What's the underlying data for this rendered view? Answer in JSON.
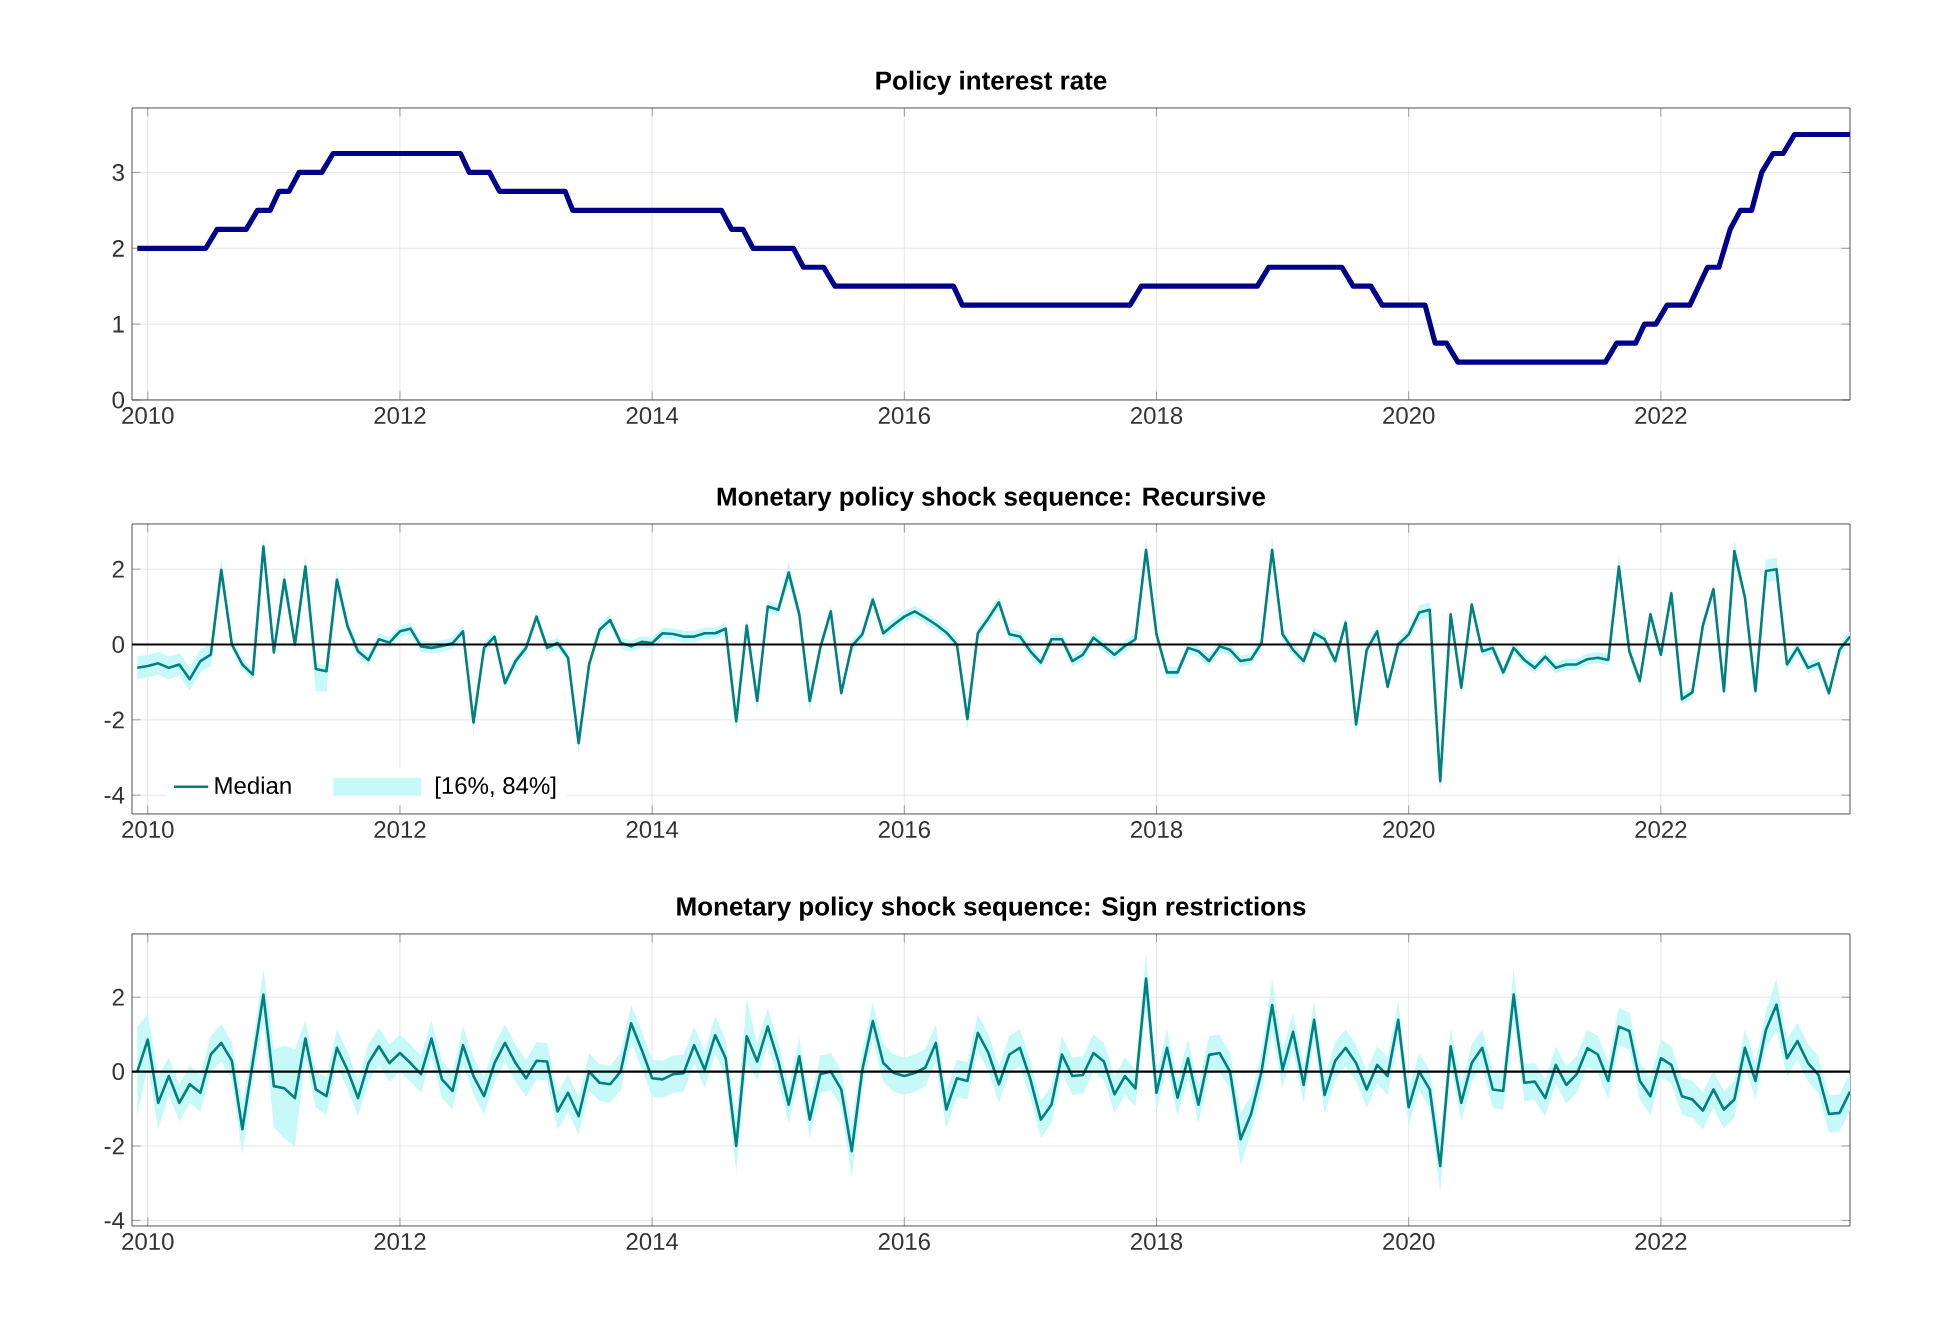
{
  "chart_data": [
    {
      "type": "line",
      "title": "Policy interest rate",
      "color": "#00008b",
      "x": [
        2009.917,
        2010.46,
        2010.55,
        2010.78,
        2010.87,
        2010.97,
        2011.04,
        2011.12,
        2011.2,
        2011.38,
        2011.47,
        2012.48,
        2012.55,
        2012.71,
        2012.79,
        2013.31,
        2013.37,
        2014.55,
        2014.63,
        2014.72,
        2014.8,
        2015.12,
        2015.2,
        2015.36,
        2015.45,
        2016.39,
        2016.46,
        2017.79,
        2017.88,
        2018.8,
        2018.89,
        2019.47,
        2019.56,
        2019.7,
        2019.79,
        2020.13,
        2020.21,
        2020.3,
        2020.39,
        2021.56,
        2021.65,
        2021.8,
        2021.87,
        2021.96,
        2022.05,
        2022.23,
        2022.37,
        2022.46,
        2022.55,
        2022.63,
        2022.72,
        2022.8,
        2022.89,
        2022.97,
        2023.06,
        2023.5
      ],
      "values": [
        2,
        2,
        2.25,
        2.25,
        2.5,
        2.5,
        2.75,
        2.75,
        3,
        3,
        3.25,
        3.25,
        3,
        3,
        2.75,
        2.75,
        2.5,
        2.5,
        2.25,
        2.25,
        2,
        2,
        1.75,
        1.75,
        1.5,
        1.5,
        1.25,
        1.25,
        1.5,
        1.5,
        1.75,
        1.75,
        1.5,
        1.5,
        1.25,
        1.25,
        0.75,
        0.75,
        0.5,
        0.5,
        0.75,
        0.75,
        1,
        1,
        1.25,
        1.25,
        1.75,
        1.75,
        2.25,
        2.5,
        2.5,
        3,
        3.25,
        3.25,
        3.5,
        3.5
      ],
      "xlim": [
        2009.875,
        2023.5
      ],
      "ylim": [
        0,
        3.85
      ],
      "xticks": [
        2010,
        2012,
        2014,
        2016,
        2018,
        2020,
        2022
      ],
      "yticks": [
        0,
        1,
        2,
        3
      ],
      "grid": true
    },
    {
      "type": "line",
      "title": "Monetary policy shock sequence: Recursive",
      "legend": "bottom left",
      "annotations": [
        "[16%, 84%]"
      ],
      "x": [
        2009.917,
        2010,
        2010.083,
        2010.167,
        2010.25,
        2010.333,
        2010.417,
        2010.5,
        2010.583,
        2010.667,
        2010.75,
        2010.833,
        2010.917,
        2011,
        2011.083,
        2011.167,
        2011.25,
        2011.333,
        2011.417,
        2011.5,
        2011.583,
        2011.667,
        2011.75,
        2011.833,
        2011.917,
        2012,
        2012.083,
        2012.167,
        2012.25,
        2012.333,
        2012.417,
        2012.5,
        2012.583,
        2012.667,
        2012.75,
        2012.833,
        2012.917,
        2013,
        2013.083,
        2013.167,
        2013.25,
        2013.333,
        2013.417,
        2013.5,
        2013.583,
        2013.667,
        2013.75,
        2013.833,
        2013.917,
        2014,
        2014.083,
        2014.167,
        2014.25,
        2014.333,
        2014.417,
        2014.5,
        2014.583,
        2014.667,
        2014.75,
        2014.833,
        2014.917,
        2015,
        2015.083,
        2015.167,
        2015.25,
        2015.333,
        2015.417,
        2015.5,
        2015.583,
        2015.667,
        2015.75,
        2015.833,
        2015.917,
        2016,
        2016.083,
        2016.167,
        2016.25,
        2016.333,
        2016.417,
        2016.5,
        2016.583,
        2016.667,
        2016.75,
        2016.833,
        2016.917,
        2017,
        2017.083,
        2017.167,
        2017.25,
        2017.333,
        2017.417,
        2017.5,
        2017.583,
        2017.667,
        2017.75,
        2017.833,
        2017.917,
        2018,
        2018.083,
        2018.167,
        2018.25,
        2018.333,
        2018.417,
        2018.5,
        2018.583,
        2018.667,
        2018.75,
        2018.833,
        2018.917,
        2019,
        2019.083,
        2019.167,
        2019.25,
        2019.333,
        2019.417,
        2019.5,
        2019.583,
        2019.667,
        2019.75,
        2019.833,
        2019.917,
        2020,
        2020.083,
        2020.167,
        2020.25,
        2020.333,
        2020.417,
        2020.5,
        2020.583,
        2020.667,
        2020.75,
        2020.833,
        2020.917,
        2021,
        2021.083,
        2021.167,
        2021.25,
        2021.333,
        2021.417,
        2021.5,
        2021.583,
        2021.667,
        2021.75,
        2021.833,
        2021.917,
        2022,
        2022.083,
        2022.167,
        2022.25,
        2022.333,
        2022.417,
        2022.5,
        2022.583,
        2022.667,
        2022.75,
        2022.833,
        2022.917,
        2023,
        2023.083,
        2023.167,
        2023.25,
        2023.333,
        2023.417,
        2023.5
      ],
      "series": [
        {
          "name": "Median",
          "color": "#008080",
          "values": [
            -0.62,
            -0.57,
            -0.5,
            -0.62,
            -0.53,
            -0.92,
            -0.44,
            -0.27,
            1.98,
            0,
            -0.53,
            -0.8,
            2.6,
            -0.21,
            1.72,
            0,
            2.07,
            -0.65,
            -0.71,
            1.72,
            0.5,
            -0.18,
            -0.41,
            0.14,
            0.05,
            0.35,
            0.42,
            -0.05,
            -0.09,
            -0.04,
            0.03,
            0.35,
            -2.07,
            -0.09,
            0.21,
            -1.03,
            -0.44,
            -0.09,
            0.74,
            -0.09,
            0.04,
            -0.35,
            -2.62,
            -0.53,
            0.39,
            0.65,
            0.05,
            -0.05,
            0.07,
            0.04,
            0.3,
            0.28,
            0.21,
            0.21,
            0.3,
            0.3,
            0.42,
            -2.04,
            0.5,
            -1.5,
            1.01,
            0.92,
            1.91,
            0.8,
            -1.5,
            -0.09,
            0.88,
            -1.29,
            -0.04,
            0.27,
            1.19,
            0.3,
            0.53,
            0.74,
            0.88,
            0.71,
            0.53,
            0.32,
            0,
            -1.98,
            0.3,
            0.7,
            1.12,
            0.27,
            0.21,
            -0.18,
            -0.48,
            0.14,
            0.14,
            -0.44,
            -0.27,
            0.18,
            -0.04,
            -0.27,
            -0.04,
            0.14,
            2.51,
            0.27,
            -0.74,
            -0.74,
            -0.09,
            -0.18,
            -0.44,
            -0.05,
            -0.14,
            -0.44,
            -0.39,
            0.04,
            2.51,
            0.27,
            -0.14,
            -0.44,
            0.3,
            0.14,
            -0.44,
            0.58,
            -2.12,
            -0.14,
            0.35,
            -1.12,
            0,
            0.27,
            0.85,
            0.92,
            -3.63,
            0.8,
            -1.15,
            1.06,
            -0.18,
            -0.09,
            -0.74,
            -0.09,
            -0.41,
            -0.62,
            -0.32,
            -0.62,
            -0.53,
            -0.53,
            -0.39,
            -0.35,
            -0.41,
            2.07,
            -0.18,
            -0.97,
            0.8,
            -0.27,
            1.36,
            -1.45,
            -1.27,
            0.5,
            1.47,
            -1.24,
            2.48,
            1.24,
            -1.24,
            1.95,
            2.0,
            -0.53,
            -0.09,
            -0.62,
            -0.5,
            -1.29,
            -0.14,
            0.21
          ],
          "lower": [
            -0.92,
            -0.87,
            -0.8,
            -0.92,
            -0.83,
            -1.22,
            -0.74,
            -0.57,
            1.68,
            -0.15,
            -0.68,
            -0.95,
            2.3,
            -0.36,
            1.42,
            -0.15,
            1.77,
            -1.25,
            -1.25,
            1.42,
            0.35,
            -0.33,
            -0.56,
            -0.01,
            -0.1,
            0.2,
            0.27,
            -0.2,
            -0.24,
            -0.19,
            -0.12,
            0.2,
            -2.37,
            -0.24,
            0.06,
            -1.18,
            -0.59,
            -0.24,
            0.59,
            -0.24,
            -0.11,
            -0.5,
            -2.92,
            -0.68,
            0.24,
            0.5,
            -0.1,
            -0.2,
            -0.08,
            -0.11,
            0.15,
            0.13,
            0.06,
            0.06,
            0.15,
            0.15,
            0.27,
            -2.34,
            0.35,
            -1.8,
            0.86,
            0.77,
            1.61,
            0.65,
            -1.8,
            -0.24,
            0.73,
            -1.44,
            -0.19,
            0.12,
            1.04,
            0.15,
            0.38,
            0.59,
            0.73,
            0.56,
            0.38,
            0.17,
            -0.15,
            -2.28,
            0.15,
            0.55,
            0.97,
            0.12,
            0.06,
            -0.33,
            -0.63,
            -0.01,
            -0.01,
            -0.59,
            -0.42,
            0.03,
            -0.19,
            -0.42,
            -0.19,
            -0.01,
            2.21,
            0.12,
            -0.89,
            -0.89,
            -0.24,
            -0.33,
            -0.59,
            -0.2,
            -0.29,
            -0.59,
            -0.54,
            -0.11,
            2.21,
            0.12,
            -0.29,
            -0.59,
            0.15,
            -0.01,
            -0.59,
            0.43,
            -2.42,
            -0.29,
            0.2,
            -1.27,
            -0.15,
            0.12,
            0.65,
            0.72,
            -3.93,
            0.65,
            -1.3,
            0.91,
            -0.33,
            -0.24,
            -0.89,
            -0.24,
            -0.56,
            -0.77,
            -0.47,
            -0.77,
            -0.68,
            -0.68,
            -0.54,
            -0.5,
            -0.56,
            1.77,
            -0.33,
            -1.12,
            0.65,
            -0.42,
            1.21,
            -1.6,
            -1.42,
            0.35,
            1.32,
            -1.39,
            2.18,
            1.09,
            -1.39,
            1.65,
            1.7,
            -0.68,
            -0.24,
            -0.77,
            -0.65,
            -1.44,
            -0.29,
            0.06
          ],
          "upper": [
            -0.32,
            -0.27,
            -0.2,
            -0.32,
            -0.23,
            -0.62,
            -0.14,
            0.03,
            2.28,
            0.15,
            -0.38,
            -0.65,
            2.85,
            -0.06,
            2.02,
            0.15,
            2.37,
            -0.5,
            -0.56,
            2.02,
            0.65,
            -0.03,
            -0.26,
            0.29,
            0.2,
            0.5,
            0.57,
            0.1,
            0.06,
            0.11,
            0.18,
            0.5,
            -1.77,
            0.06,
            0.36,
            -0.88,
            -0.29,
            0.06,
            0.89,
            0.06,
            0.19,
            -0.2,
            -2.32,
            -0.38,
            0.54,
            0.8,
            0.2,
            0.1,
            0.22,
            0.19,
            0.45,
            0.43,
            0.36,
            0.36,
            0.45,
            0.45,
            0.57,
            -1.74,
            0.65,
            -1.2,
            1.16,
            1.07,
            2.21,
            0.95,
            -1.2,
            0.06,
            1.03,
            -1.14,
            0.11,
            0.42,
            1.34,
            0.45,
            0.68,
            0.89,
            1.03,
            0.86,
            0.68,
            0.47,
            0.15,
            -1.68,
            0.45,
            0.85,
            1.27,
            0.42,
            0.36,
            -0.03,
            -0.33,
            0.29,
            0.29,
            -0.29,
            -0.12,
            0.33,
            0.11,
            -0.12,
            0.11,
            0.29,
            2.81,
            0.42,
            -0.59,
            -0.59,
            0.06,
            -0.03,
            -0.29,
            0.1,
            0.01,
            -0.29,
            -0.24,
            0.19,
            2.81,
            0.42,
            0.01,
            -0.29,
            0.45,
            0.29,
            -0.29,
            0.73,
            -1.82,
            0.01,
            0.5,
            -0.97,
            0.15,
            0.42,
            1.05,
            1.12,
            -3.33,
            0.95,
            -1.0,
            1.21,
            -0.03,
            0.06,
            -0.59,
            0.06,
            -0.26,
            -0.47,
            -0.17,
            -0.47,
            -0.38,
            -0.38,
            -0.24,
            -0.2,
            -0.26,
            2.37,
            -0.03,
            -0.82,
            0.95,
            -0.12,
            1.51,
            -1.3,
            -1.12,
            0.65,
            1.62,
            -1.09,
            2.78,
            1.39,
            -1.09,
            2.25,
            2.3,
            -0.38,
            0.06,
            -0.47,
            -0.35,
            -1.14,
            0.01,
            0.36
          ]
        }
      ],
      "ref_lines": [
        {
          "axis": "y",
          "value": 0,
          "color": "#000000"
        }
      ],
      "xlim": [
        2009.875,
        2023.5
      ],
      "ylim": [
        -4.5,
        3.2
      ],
      "xticks": [
        2010,
        2012,
        2014,
        2016,
        2018,
        2020,
        2022
      ],
      "yticks": [
        -4,
        -2,
        0,
        2
      ],
      "grid": true
    },
    {
      "type": "line",
      "title": "Monetary policy shock sequence: Sign restrictions",
      "x": [
        2009.917,
        2010,
        2010.083,
        2010.167,
        2010.25,
        2010.333,
        2010.417,
        2010.5,
        2010.583,
        2010.667,
        2010.75,
        2010.833,
        2010.917,
        2011,
        2011.083,
        2011.167,
        2011.25,
        2011.333,
        2011.417,
        2011.5,
        2011.583,
        2011.667,
        2011.75,
        2011.833,
        2011.917,
        2012,
        2012.083,
        2012.167,
        2012.25,
        2012.333,
        2012.417,
        2012.5,
        2012.583,
        2012.667,
        2012.75,
        2012.833,
        2012.917,
        2013,
        2013.083,
        2013.167,
        2013.25,
        2013.333,
        2013.417,
        2013.5,
        2013.583,
        2013.667,
        2013.75,
        2013.833,
        2013.917,
        2014,
        2014.083,
        2014.167,
        2014.25,
        2014.333,
        2014.417,
        2014.5,
        2014.583,
        2014.667,
        2014.75,
        2014.833,
        2014.917,
        2015,
        2015.083,
        2015.167,
        2015.25,
        2015.333,
        2015.417,
        2015.5,
        2015.583,
        2015.667,
        2015.75,
        2015.833,
        2015.917,
        2016,
        2016.083,
        2016.167,
        2016.25,
        2016.333,
        2016.417,
        2016.5,
        2016.583,
        2016.667,
        2016.75,
        2016.833,
        2016.917,
        2017,
        2017.083,
        2017.167,
        2017.25,
        2017.333,
        2017.417,
        2017.5,
        2017.583,
        2017.667,
        2017.75,
        2017.833,
        2017.917,
        2018,
        2018.083,
        2018.167,
        2018.25,
        2018.333,
        2018.417,
        2018.5,
        2018.583,
        2018.667,
        2018.75,
        2018.833,
        2018.917,
        2019,
        2019.083,
        2019.167,
        2019.25,
        2019.333,
        2019.417,
        2019.5,
        2019.583,
        2019.667,
        2019.75,
        2019.833,
        2019.917,
        2020,
        2020.083,
        2020.167,
        2020.25,
        2020.333,
        2020.417,
        2020.5,
        2020.583,
        2020.667,
        2020.75,
        2020.833,
        2020.917,
        2021,
        2021.083,
        2021.167,
        2021.25,
        2021.333,
        2021.417,
        2021.5,
        2021.583,
        2021.667,
        2021.75,
        2021.833,
        2021.917,
        2022,
        2022.083,
        2022.167,
        2022.25,
        2022.333,
        2022.417,
        2022.5,
        2022.583,
        2022.667,
        2022.75,
        2022.833,
        2022.917,
        2023,
        2023.083,
        2023.167,
        2023.25,
        2023.333,
        2023.417,
        2023.5
      ],
      "series": [
        {
          "color": "#008080",
          "values": [
            0,
            0.86,
            -0.84,
            -0.12,
            -0.84,
            -0.34,
            -0.57,
            0.46,
            0.77,
            0.29,
            -1.55,
            0.25,
            2.07,
            -0.39,
            -0.45,
            -0.71,
            0.89,
            -0.48,
            -0.66,
            0.64,
            0.05,
            -0.71,
            0.23,
            0.68,
            0.23,
            0.5,
            0.23,
            -0.07,
            0.89,
            -0.21,
            -0.52,
            0.71,
            -0.12,
            -0.66,
            0.23,
            0.77,
            0.23,
            -0.18,
            0.29,
            0.27,
            -1.07,
            -0.57,
            -1.2,
            0,
            -0.3,
            -0.34,
            0,
            1.3,
            0.59,
            -0.18,
            -0.21,
            -0.07,
            -0.04,
            0.71,
            0.05,
            0.98,
            0.36,
            -2.0,
            0.95,
            0.27,
            1.21,
            0.29,
            -0.89,
            0.41,
            -1.29,
            -0.07,
            0,
            -0.48,
            -2.14,
            0.05,
            1.36,
            0.23,
            -0.04,
            -0.12,
            -0.04,
            0.11,
            0.77,
            -1.02,
            -0.18,
            -0.25,
            1.04,
            0.5,
            -0.34,
            0.46,
            0.64,
            -0.21,
            -1.29,
            -0.89,
            0.46,
            -0.12,
            -0.09,
            0.5,
            0.27,
            -0.61,
            -0.12,
            -0.45,
            2.5,
            -0.57,
            0.64,
            -0.7,
            0.36,
            -0.89,
            0.45,
            0.5,
            0,
            -1.82,
            -1.14,
            0,
            1.79,
            0.05,
            1.07,
            -0.36,
            1.39,
            -0.63,
            0.29,
            0.64,
            0.23,
            -0.48,
            0.18,
            -0.12,
            1.39,
            -0.96,
            0,
            -0.48,
            -2.54,
            0.68,
            -0.84,
            0.23,
            0.64,
            -0.48,
            -0.52,
            2.07,
            -0.3,
            -0.27,
            -0.71,
            0.18,
            -0.36,
            -0.07,
            0.63,
            0.46,
            -0.25,
            1.21,
            1.09,
            -0.25,
            -0.66,
            0.36,
            0.18,
            -0.66,
            -0.75,
            -1.05,
            -0.48,
            -1.02,
            -0.75,
            0.64,
            -0.25,
            1.12,
            1.8,
            0.36,
            0.82,
            0.23,
            -0.09,
            -1.14,
            -1.11,
            -0.54
          ],
          "lower": [
            -1.2,
            0.16,
            -1.54,
            -0.62,
            -1.34,
            -0.84,
            -1.07,
            -0.04,
            0.27,
            -0.21,
            -2.25,
            -0.25,
            1.37,
            -1.5,
            -1.8,
            -2.0,
            0.39,
            -0.98,
            -1.16,
            0.14,
            -0.45,
            -1.21,
            -0.27,
            0.18,
            -0.27,
            0,
            -0.27,
            -0.57,
            0.39,
            -0.71,
            -1.02,
            0.21,
            -0.62,
            -1.16,
            -0.27,
            0.27,
            -0.27,
            -0.68,
            -0.21,
            -0.23,
            -1.57,
            -1.07,
            -1.7,
            -0.5,
            -0.8,
            -0.84,
            -0.5,
            0.8,
            0.09,
            -0.68,
            -0.71,
            -0.57,
            -0.54,
            0.21,
            -0.45,
            0.48,
            -0.14,
            -2.7,
            0.25,
            -0.23,
            0.71,
            -0.21,
            -1.39,
            -0.09,
            -1.79,
            -0.57,
            -0.5,
            -0.98,
            -2.84,
            -0.45,
            0.86,
            -0.27,
            -0.54,
            -0.62,
            -0.54,
            -0.39,
            0.27,
            -1.52,
            -0.68,
            -0.75,
            0.54,
            0,
            -0.84,
            -0.04,
            0.14,
            -0.71,
            -1.79,
            -1.39,
            -0.04,
            -0.62,
            -0.59,
            0,
            -0.23,
            -1.11,
            -0.62,
            -0.95,
            1.8,
            -1.07,
            0.14,
            -1.2,
            -0.14,
            -1.39,
            -0.05,
            0,
            -0.5,
            -2.52,
            -1.64,
            -0.5,
            1.09,
            -0.45,
            0.57,
            -0.86,
            0.89,
            -1.13,
            -0.21,
            0.14,
            -0.27,
            -0.98,
            -0.32,
            -0.62,
            0.89,
            -1.46,
            -0.5,
            -0.98,
            -3.24,
            0.18,
            -1.34,
            -0.27,
            0.14,
            -0.98,
            -1.02,
            1.37,
            -0.8,
            -0.77,
            -1.21,
            -0.32,
            -0.86,
            -0.57,
            0.13,
            -0.04,
            -0.75,
            0.71,
            0.59,
            -0.75,
            -1.16,
            -0.14,
            -0.32,
            -1.16,
            -1.25,
            -1.55,
            -0.98,
            -1.52,
            -1.25,
            0.14,
            -0.75,
            0.62,
            1.1,
            -0.14,
            0.32,
            -0.27,
            -0.59,
            -1.64,
            -1.61,
            -1.04
          ],
          "upper": [
            1.2,
            1.56,
            -0.14,
            0.38,
            -0.34,
            0.16,
            -0.07,
            0.96,
            1.27,
            0.79,
            -0.85,
            0.75,
            2.77,
            0.6,
            0.7,
            0.6,
            1.39,
            0.02,
            -0.16,
            1.14,
            0.55,
            -0.21,
            0.73,
            1.18,
            0.73,
            1,
            0.73,
            0.43,
            1.39,
            0.29,
            -0.02,
            1.21,
            0.38,
            -0.16,
            0.73,
            1.27,
            0.73,
            0.32,
            0.79,
            0.77,
            -0.57,
            -0.07,
            -0.7,
            0.5,
            0.2,
            0.16,
            0.5,
            1.8,
            1.09,
            0.32,
            0.29,
            0.43,
            0.46,
            1.21,
            0.55,
            1.48,
            0.86,
            -1.3,
            1.95,
            0.77,
            1.71,
            0.79,
            -0.39,
            0.91,
            -0.79,
            0.43,
            0.5,
            0.02,
            -1.44,
            0.55,
            1.86,
            0.73,
            0.46,
            0.38,
            0.46,
            0.61,
            1.27,
            -0.52,
            0.32,
            0.25,
            1.54,
            1,
            0.16,
            0.96,
            1.14,
            0.29,
            -0.79,
            -0.39,
            0.96,
            0.38,
            0.41,
            1,
            0.77,
            -0.11,
            0.38,
            0.05,
            3.2,
            -0.07,
            1.14,
            -0.2,
            0.86,
            -0.39,
            0.95,
            1,
            0.5,
            -1.12,
            -0.64,
            0.5,
            2.49,
            0.55,
            1.57,
            0.14,
            1.89,
            -0.13,
            0.79,
            1.14,
            0.73,
            0.02,
            0.68,
            0.38,
            1.89,
            -0.46,
            0.5,
            0.02,
            -1.84,
            1.18,
            -0.34,
            0.73,
            1.14,
            0.02,
            -0.02,
            2.77,
            0.2,
            0.23,
            -0.21,
            0.68,
            0.14,
            0.43,
            1.13,
            0.96,
            0.25,
            1.71,
            1.59,
            0.25,
            -0.16,
            0.86,
            0.68,
            -0.16,
            -0.25,
            -0.55,
            0.02,
            -0.52,
            -0.25,
            1.14,
            0.25,
            1.62,
            2.5,
            0.86,
            1.32,
            0.73,
            0.41,
            -0.64,
            -0.61,
            -0.04
          ]
        }
      ],
      "ref_lines": [
        {
          "axis": "y",
          "value": 0,
          "color": "#000000"
        }
      ],
      "xlim": [
        2009.875,
        2023.5
      ],
      "ylim": [
        -4.15,
        3.7
      ],
      "xticks": [
        2010,
        2012,
        2014,
        2016,
        2018,
        2020,
        2022
      ],
      "yticks": [
        -4,
        -2,
        0,
        2
      ],
      "grid": true
    }
  ]
}
